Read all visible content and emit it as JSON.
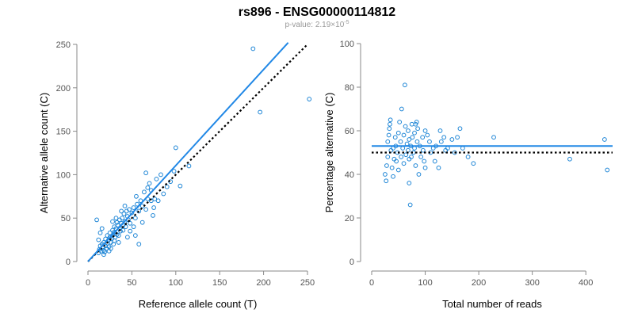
{
  "figure": {
    "title": "rs896 - ENSG00000114812",
    "subtitle": "p-value: 2.19×10",
    "subtitle_exponent": "-5"
  },
  "colors": {
    "point": "#1f86d6",
    "fit_line": "#2188e6",
    "reference_line": "#000000",
    "axis": "#8a8a8a"
  },
  "chart_data": [
    {
      "type": "scatter",
      "title": "",
      "xlabel": "Reference allele count (T)",
      "ylabel": "Alternative allele count (C)",
      "xlim": [
        0,
        250
      ],
      "ylim": [
        0,
        250
      ],
      "xticks": [
        0,
        50,
        100,
        150,
        200,
        250
      ],
      "yticks": [
        0,
        50,
        100,
        150,
        200,
        250
      ],
      "grid": false,
      "legend": "none",
      "fit_line": {
        "x": [
          0,
          228
        ],
        "y": [
          0,
          252
        ],
        "style": "solid"
      },
      "reference_line": {
        "x": [
          0,
          250
        ],
        "y": [
          0,
          250
        ],
        "style": "dotted"
      },
      "points": [
        [
          12,
          10
        ],
        [
          13,
          14
        ],
        [
          14,
          18
        ],
        [
          15,
          12
        ],
        [
          16,
          20
        ],
        [
          17,
          16
        ],
        [
          18,
          22
        ],
        [
          18,
          13
        ],
        [
          19,
          11
        ],
        [
          20,
          26
        ],
        [
          20,
          18
        ],
        [
          21,
          15
        ],
        [
          22,
          30
        ],
        [
          22,
          21
        ],
        [
          23,
          24
        ],
        [
          24,
          17
        ],
        [
          25,
          28
        ],
        [
          25,
          33
        ],
        [
          26,
          22
        ],
        [
          27,
          26
        ],
        [
          28,
          36
        ],
        [
          28,
          30
        ],
        [
          29,
          20
        ],
        [
          30,
          40
        ],
        [
          30,
          34
        ],
        [
          31,
          28
        ],
        [
          32,
          38
        ],
        [
          33,
          45
        ],
        [
          33,
          31
        ],
        [
          34,
          42
        ],
        [
          35,
          30
        ],
        [
          36,
          48
        ],
        [
          36,
          38
        ],
        [
          37,
          35
        ],
        [
          38,
          44
        ],
        [
          39,
          50
        ],
        [
          40,
          42
        ],
        [
          40,
          36
        ],
        [
          41,
          55
        ],
        [
          42,
          46
        ],
        [
          43,
          40
        ],
        [
          44,
          58
        ],
        [
          45,
          52
        ],
        [
          46,
          48
        ],
        [
          47,
          60
        ],
        [
          48,
          44
        ],
        [
          50,
          56
        ],
        [
          52,
          62
        ],
        [
          54,
          50
        ],
        [
          55,
          75
        ],
        [
          56,
          66
        ],
        [
          58,
          58
        ],
        [
          60,
          70
        ],
        [
          62,
          64
        ],
        [
          64,
          80
        ],
        [
          66,
          60
        ],
        [
          68,
          72
        ],
        [
          70,
          90
        ],
        [
          72,
          82
        ],
        [
          75,
          62
        ],
        [
          78,
          95
        ],
        [
          80,
          70
        ],
        [
          83,
          100
        ],
        [
          86,
          78
        ],
        [
          90,
          86
        ],
        [
          94,
          92
        ],
        [
          98,
          104
        ],
        [
          100,
          131
        ],
        [
          105,
          87
        ],
        [
          115,
          110
        ],
        [
          188,
          245
        ],
        [
          196,
          172
        ],
        [
          252,
          187
        ],
        [
          10,
          48
        ],
        [
          14,
          33
        ],
        [
          16,
          38
        ],
        [
          12,
          25
        ],
        [
          18,
          8
        ],
        [
          24,
          12
        ],
        [
          26,
          15
        ],
        [
          30,
          24
        ],
        [
          35,
          22
        ],
        [
          45,
          28
        ],
        [
          48,
          35
        ],
        [
          52,
          40
        ],
        [
          54,
          30
        ],
        [
          58,
          20
        ],
        [
          62,
          45
        ],
        [
          66,
          102
        ],
        [
          68,
          85
        ],
        [
          72,
          70
        ],
        [
          74,
          53
        ],
        [
          76,
          72
        ],
        [
          42,
          64
        ],
        [
          38,
          58
        ],
        [
          32,
          50
        ],
        [
          28,
          46
        ]
      ]
    },
    {
      "type": "scatter",
      "title": "",
      "xlabel": "Total number of reads",
      "ylabel": "Percentage alternative (C)",
      "xlim": [
        0,
        450
      ],
      "ylim": [
        0,
        100
      ],
      "xticks": [
        0,
        100,
        200,
        300,
        400
      ],
      "yticks": [
        0,
        20,
        40,
        60,
        80,
        100
      ],
      "grid": false,
      "legend": "none",
      "fit_line": {
        "x": [
          0,
          450
        ],
        "y": [
          53,
          53
        ],
        "style": "solid"
      },
      "reference_line": {
        "x": [
          0,
          450
        ],
        "y": [
          50,
          50
        ],
        "style": "dotted"
      },
      "points": [
        [
          25,
          40
        ],
        [
          27,
          37
        ],
        [
          28,
          44
        ],
        [
          30,
          48
        ],
        [
          30,
          55
        ],
        [
          32,
          58
        ],
        [
          33,
          61
        ],
        [
          34,
          63
        ],
        [
          35,
          65
        ],
        [
          36,
          51
        ],
        [
          38,
          43
        ],
        [
          40,
          39
        ],
        [
          40,
          52
        ],
        [
          42,
          47
        ],
        [
          44,
          57
        ],
        [
          45,
          53
        ],
        [
          46,
          46
        ],
        [
          48,
          50
        ],
        [
          50,
          59
        ],
        [
          50,
          42
        ],
        [
          52,
          64
        ],
        [
          54,
          55
        ],
        [
          55,
          48
        ],
        [
          56,
          70
        ],
        [
          58,
          52
        ],
        [
          60,
          45
        ],
        [
          60,
          58
        ],
        [
          62,
          81
        ],
        [
          63,
          62
        ],
        [
          64,
          49
        ],
        [
          66,
          54
        ],
        [
          68,
          51
        ],
        [
          68,
          60
        ],
        [
          70,
          47
        ],
        [
          70,
          56
        ],
        [
          72,
          26
        ],
        [
          73,
          53
        ],
        [
          74,
          48
        ],
        [
          75,
          63
        ],
        [
          76,
          57
        ],
        [
          78,
          50
        ],
        [
          80,
          52
        ],
        [
          80,
          59
        ],
        [
          82,
          44
        ],
        [
          84,
          64
        ],
        [
          85,
          55
        ],
        [
          86,
          61
        ],
        [
          88,
          40
        ],
        [
          90,
          53
        ],
        [
          92,
          48
        ],
        [
          95,
          57
        ],
        [
          96,
          51
        ],
        [
          98,
          46
        ],
        [
          100,
          60
        ],
        [
          100,
          43
        ],
        [
          104,
          58
        ],
        [
          108,
          55
        ],
        [
          110,
          50
        ],
        [
          115,
          52
        ],
        [
          118,
          46
        ],
        [
          120,
          53
        ],
        [
          125,
          43
        ],
        [
          128,
          60
        ],
        [
          130,
          55
        ],
        [
          135,
          57
        ],
        [
          138,
          51
        ],
        [
          142,
          52
        ],
        [
          150,
          56
        ],
        [
          155,
          50
        ],
        [
          160,
          57
        ],
        [
          165,
          61
        ],
        [
          170,
          52
        ],
        [
          180,
          48
        ],
        [
          190,
          45
        ],
        [
          228,
          57
        ],
        [
          370,
          47
        ],
        [
          435,
          56
        ],
        [
          440,
          42
        ],
        [
          70,
          36
        ],
        [
          82,
          63
        ]
      ]
    }
  ]
}
